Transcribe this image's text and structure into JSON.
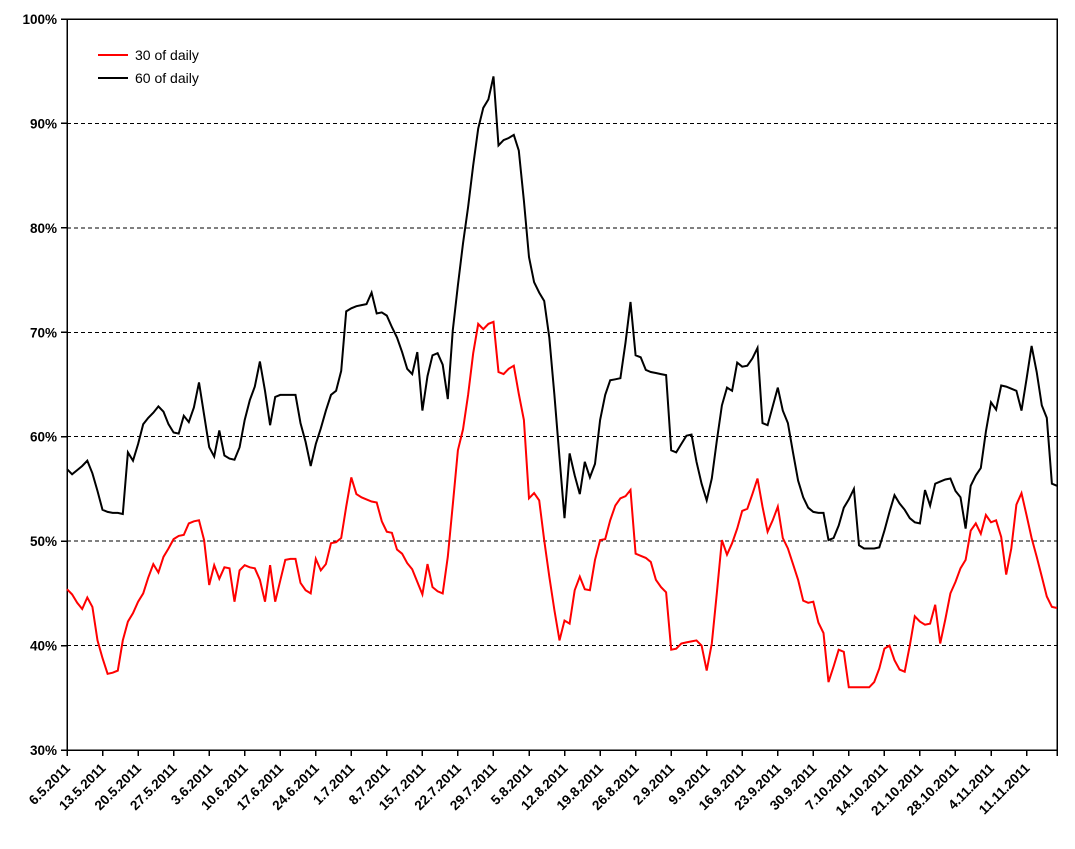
{
  "chart_data": {
    "type": "line",
    "title": "",
    "xlabel": "",
    "ylabel": "",
    "ylim": [
      30,
      100
    ],
    "y_unit": "%",
    "grid": "horizontal-dashed",
    "legend_position": "top-left-inside",
    "x_axis": {
      "start_date": "6.5.2011",
      "frequency": "daily",
      "tick_interval_days": 7,
      "tick_labels": [
        "6.5.2011",
        "13.5.2011",
        "20.5.2011",
        "27.5.2011",
        "3.6.2011",
        "10.6.2011",
        "17.6.2011",
        "24.6.2011",
        "1.7.2011",
        "8.7.2011",
        "15.7.2011",
        "22.7.2011",
        "29.7.2011",
        "5.8.2011",
        "12.8.2011",
        "19.8.2011",
        "26.8.2011",
        "2.9.2011",
        "9.9.2011",
        "16.9.2011",
        "23.9.2011",
        "30.9.2011",
        "7.10.2011",
        "14.10.2011",
        "21.10.2011",
        "28.10.2011",
        "4.11.2011",
        "11.11.2011"
      ]
    },
    "y_axis": {
      "min": 30,
      "max": 100,
      "step": 10,
      "tick_labels": [
        "100%",
        "90%",
        "80%",
        "70%",
        "60%",
        "50%",
        "40%",
        "30%"
      ]
    },
    "series": [
      {
        "name": "30 of daily",
        "color": "#ff0000",
        "values": [
          45.4,
          44.9,
          44.1,
          43.5,
          44.6,
          43.7,
          40.5,
          38.8,
          37.3,
          37.4,
          37.6,
          40.5,
          42.3,
          43.1,
          44.2,
          45.0,
          46.5,
          47.8,
          47.0,
          48.5,
          49.3,
          50.2,
          50.5,
          50.6,
          51.7,
          51.9,
          52.0,
          50.1,
          45.8,
          47.7,
          46.4,
          47.5,
          47.4,
          44.2,
          47.2,
          47.7,
          47.5,
          47.4,
          46.3,
          44.2,
          47.7,
          44.2,
          46.2,
          48.2,
          48.3,
          48.3,
          46.0,
          45.3,
          45.0,
          48.3,
          47.2,
          47.8,
          49.8,
          49.9,
          50.3,
          53.3,
          56.1,
          54.5,
          54.2,
          54.0,
          53.8,
          53.7,
          51.9,
          50.9,
          50.8,
          49.2,
          48.8,
          47.9,
          47.3,
          46.1,
          44.9,
          47.8,
          45.6,
          45.2,
          45.0,
          48.5,
          53.5,
          58.7,
          60.7,
          64.0,
          68.0,
          70.8,
          70.3,
          70.8,
          71.0,
          66.2,
          66.0,
          66.5,
          66.8,
          64.1,
          61.6,
          54.1,
          54.6,
          53.9,
          50.1,
          46.6,
          43.4,
          40.5,
          42.4,
          42.1,
          45.3,
          46.6,
          45.4,
          45.3,
          48.2,
          50.1,
          50.2,
          52.0,
          53.4,
          54.1,
          54.3,
          54.9,
          48.8,
          48.6,
          48.4,
          48.0,
          46.3,
          45.6,
          45.1,
          39.6,
          39.7,
          40.2,
          40.3,
          40.4,
          40.5,
          40.0,
          37.6,
          40.2,
          45.0,
          50.1,
          48.7,
          49.8,
          51.2,
          52.9,
          53.1,
          54.5,
          56.0,
          53.3,
          50.9,
          52.0,
          53.3,
          50.3,
          49.3,
          47.8,
          46.3,
          44.3,
          44.1,
          44.2,
          42.2,
          41.2,
          36.5,
          38.0,
          39.6,
          39.4,
          36.0,
          36.0,
          36.0,
          36.0,
          36.0,
          36.5,
          37.8,
          39.7,
          40.0,
          38.6,
          37.7,
          37.5,
          40.0,
          42.8,
          42.3,
          42.0,
          42.1,
          43.9,
          40.2,
          42.5,
          45.0,
          46.1,
          47.4,
          48.2,
          51.0,
          51.7,
          50.7,
          52.5,
          51.8,
          52.0,
          50.4,
          46.8,
          49.3,
          53.5,
          54.6,
          52.5,
          50.3,
          48.5,
          46.6,
          44.7,
          43.7,
          43.6
        ]
      },
      {
        "name": "60 of daily",
        "color": "#000000",
        "values": [
          56.9,
          56.4,
          56.8,
          57.2,
          57.7,
          56.5,
          54.8,
          53.0,
          52.8,
          52.7,
          52.7,
          52.6,
          58.5,
          57.7,
          59.3,
          61.2,
          61.8,
          62.3,
          62.9,
          62.4,
          61.2,
          60.4,
          60.3,
          62.0,
          61.4,
          62.8,
          65.2,
          62.1,
          59.0,
          58.1,
          60.6,
          58.2,
          57.9,
          57.8,
          59.0,
          61.6,
          63.5,
          64.8,
          67.2,
          64.4,
          61.1,
          63.8,
          64.0,
          64.0,
          64.0,
          64.0,
          61.3,
          59.5,
          57.2,
          59.3,
          60.8,
          62.5,
          64.0,
          64.4,
          66.3,
          72.0,
          72.3,
          72.5,
          72.6,
          72.7,
          73.8,
          71.8,
          71.9,
          71.6,
          70.5,
          69.5,
          68.1,
          66.5,
          66.0,
          68.1,
          62.5,
          65.8,
          67.8,
          68.0,
          66.9,
          63.6,
          70.2,
          74.5,
          78.5,
          82.0,
          86.0,
          89.5,
          91.5,
          92.3,
          94.5,
          87.9,
          88.4,
          88.6,
          88.9,
          87.4,
          82.6,
          77.2,
          74.8,
          73.8,
          73.0,
          69.5,
          64.0,
          58.0,
          52.2,
          58.4,
          56.3,
          54.5,
          57.6,
          56.1,
          57.4,
          61.6,
          64.0,
          65.4,
          65.5,
          65.6,
          69.0,
          72.9,
          67.8,
          67.6,
          66.4,
          66.2,
          66.1,
          66.0,
          65.9,
          58.7,
          58.5,
          59.3,
          60.1,
          60.2,
          57.6,
          55.5,
          53.9,
          56.0,
          59.6,
          63.0,
          64.7,
          64.4,
          67.1,
          66.7,
          66.8,
          67.5,
          68.5,
          61.3,
          61.1,
          62.9,
          64.7,
          62.5,
          61.3,
          58.5,
          55.8,
          54.2,
          53.2,
          52.8,
          52.7,
          52.7,
          50.1,
          50.3,
          51.5,
          53.2,
          54.0,
          55.0,
          49.6,
          49.3,
          49.3,
          49.3,
          49.4,
          51.0,
          52.8,
          54.4,
          53.6,
          53.0,
          52.2,
          51.8,
          51.7,
          54.9,
          53.4,
          55.5,
          55.7,
          55.9,
          56.0,
          54.8,
          54.2,
          51.2,
          55.3,
          56.3,
          57.0,
          60.5,
          63.3,
          62.6,
          64.9,
          64.8,
          64.6,
          64.4,
          62.5,
          65.5,
          68.7,
          66.2,
          63.0,
          61.8,
          55.5,
          55.3
        ]
      }
    ]
  }
}
